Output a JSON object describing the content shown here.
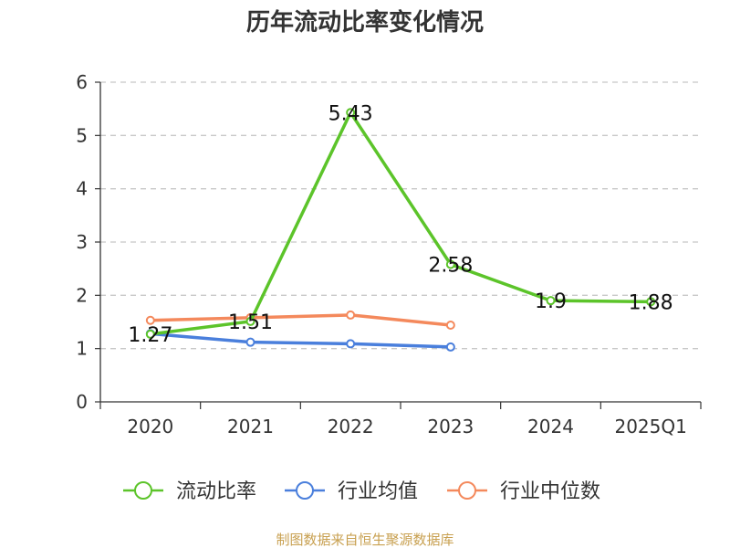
{
  "chart_data": {
    "type": "line",
    "title": "历年流动比率变化情况",
    "categories": [
      "2020",
      "2021",
      "2022",
      "2023",
      "2024",
      "2025Q1"
    ],
    "y_ticks": [
      "0",
      "1",
      "2",
      "3",
      "4",
      "5",
      "6"
    ],
    "ylim": [
      0,
      6
    ],
    "grid": true,
    "legend_position": "bottom",
    "series": [
      {
        "name": "流动比率",
        "color": "#5cc42a",
        "values": [
          1.27,
          1.51,
          5.43,
          2.58,
          1.9,
          1.88
        ],
        "labels": [
          "1.27",
          "1.51",
          "5.43",
          "2.58",
          "1.9",
          "1.88"
        ]
      },
      {
        "name": "行业均值",
        "color": "#4a7fdc",
        "values": [
          1.28,
          1.12,
          1.09,
          1.03,
          null,
          null
        ]
      },
      {
        "name": "行业中位数",
        "color": "#f4895c",
        "values": [
          1.53,
          1.58,
          1.63,
          1.44,
          null,
          null
        ]
      }
    ],
    "source": "制图数据来自恒生聚源数据库"
  }
}
